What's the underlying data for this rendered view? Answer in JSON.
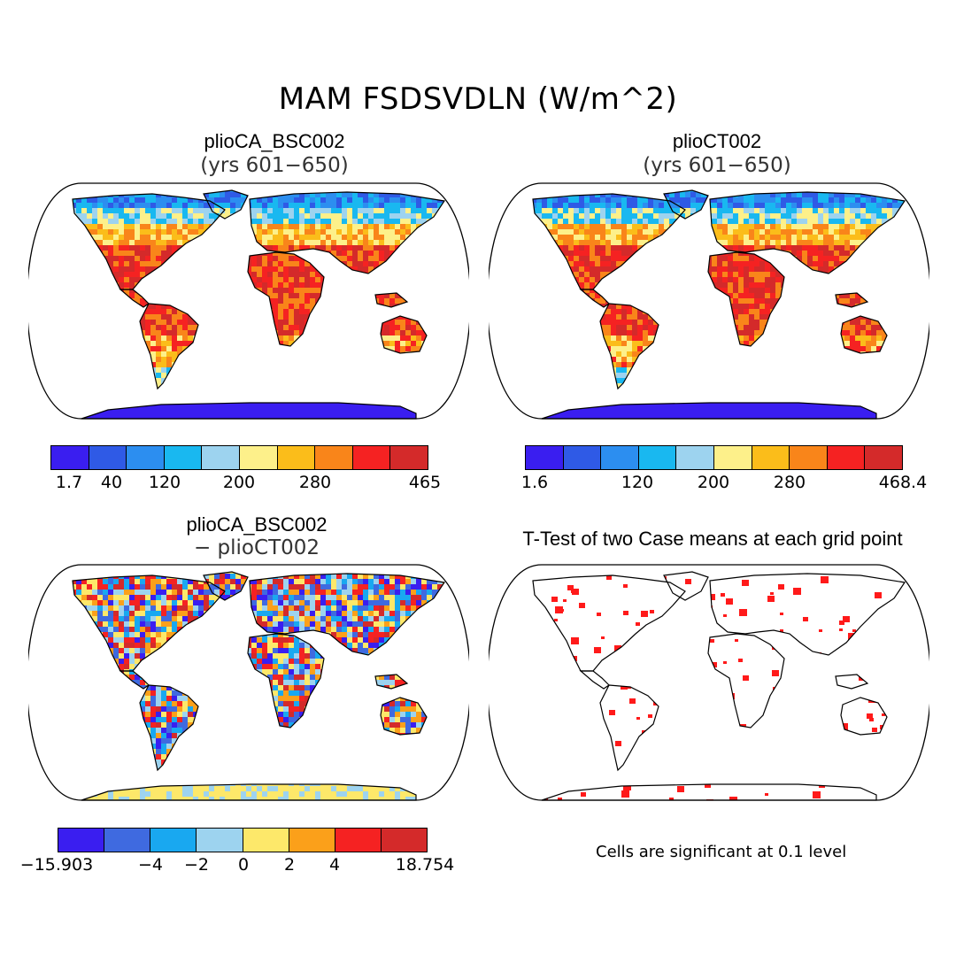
{
  "title": "MAM FSDSVDLN (W/m^2)",
  "panels": [
    {
      "title": "plioCA_BSC002",
      "subtitle": "(yrs 601−650)"
    },
    {
      "title": "plioCT002",
      "subtitle": "(yrs 601−650)"
    },
    {
      "title": "plioCA_BSC002",
      "subtitle": "− plioCT002"
    },
    {
      "title": "T-Test of two Case means at each grid point",
      "subtitle": ""
    }
  ],
  "colorbars": [
    {
      "colors": [
        "#3a1ef0",
        "#2f5ae6",
        "#2c8ef0",
        "#19b8f0",
        "#9dd3ef",
        "#fdf08a",
        "#fbbd1a",
        "#f9851a",
        "#f52222",
        "#d42a2a"
      ],
      "labels": [
        "1.7",
        "40",
        "120",
        "200",
        "280",
        "465"
      ]
    },
    {
      "colors": [
        "#3a1ef0",
        "#2f5ae6",
        "#2c8ef0",
        "#19b8f0",
        "#9dd3ef",
        "#fdf08a",
        "#fbbd1a",
        "#f9851a",
        "#f52222",
        "#d42a2a"
      ],
      "labels": [
        "1.6",
        "120",
        "200",
        "280",
        "468.4"
      ]
    },
    {
      "colors": [
        "#3a1ef0",
        "#3f6ae0",
        "#19a8f0",
        "#9dd3ef",
        "#fde86a",
        "#fba01a",
        "#f52222",
        "#d42a2a"
      ],
      "labels": [
        "−15.903",
        "−4",
        "−2",
        "0",
        "2",
        "4",
        "18.754"
      ]
    }
  ],
  "significance_note": "Cells are significant at 0.1 level",
  "significance_color": "#ff1a1a"
}
